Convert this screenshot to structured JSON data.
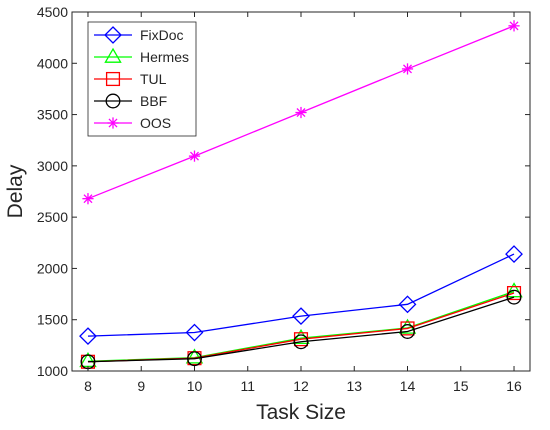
{
  "chart_data": {
    "type": "line",
    "title": "",
    "xlabel": "Task Size",
    "ylabel": "Delay",
    "x": [
      8,
      10,
      12,
      14,
      16
    ],
    "xlim": [
      7.7,
      16.3
    ],
    "ylim": [
      1000,
      4500
    ],
    "xticks": [
      "8",
      "9",
      "10",
      "11",
      "12",
      "13",
      "14",
      "15",
      "16"
    ],
    "yticks": [
      "1000",
      "1500",
      "2000",
      "2500",
      "3000",
      "3500",
      "4000",
      "4500"
    ],
    "grid": false,
    "legend_position": "top-left",
    "series": [
      {
        "name": "FixDoc",
        "color": "#0000ff",
        "marker": "diamond",
        "values": [
          1340,
          1375,
          1535,
          1650,
          2140
        ]
      },
      {
        "name": "Hermes",
        "color": "#00ff00",
        "marker": "triangle",
        "values": [
          1095,
          1130,
          1320,
          1420,
          1775
        ]
      },
      {
        "name": "TUL",
        "color": "#ff0000",
        "marker": "square",
        "values": [
          1090,
          1125,
          1310,
          1415,
          1760
        ]
      },
      {
        "name": "BBF",
        "color": "#000000",
        "marker": "circle",
        "values": [
          1090,
          1120,
          1285,
          1385,
          1720
        ]
      },
      {
        "name": "OOS",
        "color": "#ff00ff",
        "marker": "asterisk",
        "values": [
          2680,
          3095,
          3520,
          3945,
          4365
        ]
      }
    ]
  }
}
